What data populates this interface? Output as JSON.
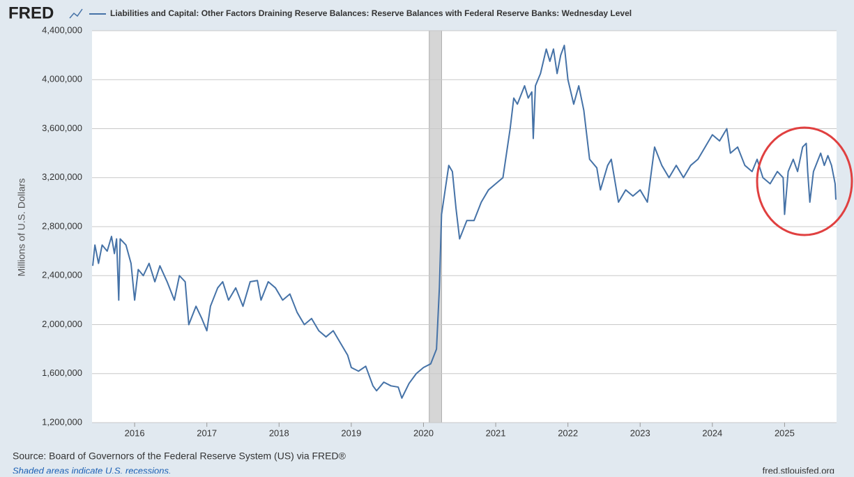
{
  "logo": "FRED",
  "source": "Source: Board of Governors of the Federal Reserve System (US) via FRED®",
  "note": "Shaded areas indicate U.S. recessions.",
  "site": "fred.stlouisfed.org",
  "chart_data": {
    "type": "line",
    "y_label": "Millions of U.S. Dollars",
    "x": [
      2015.42,
      2015.45,
      2015.5,
      2015.55,
      2015.62,
      2015.68,
      2015.72,
      2015.75,
      2015.78,
      2015.8,
      2015.88,
      2015.95,
      2016.0,
      2016.05,
      2016.12,
      2016.2,
      2016.28,
      2016.35,
      2016.45,
      2016.55,
      2016.62,
      2016.7,
      2016.75,
      2016.85,
      2016.93,
      2017.0,
      2017.05,
      2017.15,
      2017.22,
      2017.3,
      2017.4,
      2017.5,
      2017.6,
      2017.7,
      2017.75,
      2017.85,
      2017.95,
      2018.05,
      2018.15,
      2018.25,
      2018.35,
      2018.45,
      2018.55,
      2018.65,
      2018.75,
      2018.85,
      2018.95,
      2019.0,
      2019.1,
      2019.2,
      2019.3,
      2019.35,
      2019.45,
      2019.55,
      2019.65,
      2019.7,
      2019.8,
      2019.9,
      2020.0,
      2020.1,
      2020.18,
      2020.22,
      2020.25,
      2020.3,
      2020.35,
      2020.4,
      2020.45,
      2020.5,
      2020.6,
      2020.7,
      2020.8,
      2020.9,
      2021.0,
      2021.1,
      2021.15,
      2021.2,
      2021.25,
      2021.3,
      2021.4,
      2021.45,
      2021.5,
      2021.52,
      2021.55,
      2021.62,
      2021.7,
      2021.75,
      2021.8,
      2021.85,
      2021.9,
      2021.95,
      2022.0,
      2022.08,
      2022.15,
      2022.22,
      2022.3,
      2022.4,
      2022.45,
      2022.55,
      2022.6,
      2022.7,
      2022.8,
      2022.9,
      2023.0,
      2023.1,
      2023.2,
      2023.3,
      2023.4,
      2023.5,
      2023.6,
      2023.7,
      2023.8,
      2023.9,
      2024.0,
      2024.1,
      2024.2,
      2024.25,
      2024.35,
      2024.45,
      2024.55,
      2024.62,
      2024.7,
      2024.8,
      2024.9,
      2024.98,
      2025.0,
      2025.05,
      2025.12,
      2025.18,
      2025.25,
      2025.3,
      2025.32,
      2025.35,
      2025.4,
      2025.5,
      2025.55,
      2025.6,
      2025.65,
      2025.7,
      2025.71
    ],
    "series": [
      {
        "name": "Liabilities and Capital: Other Factors Draining Reserve Balances: Reserve Balances with Federal Reserve Banks: Wednesday Level",
        "color": "#4572a7",
        "values": [
          2480000,
          2650000,
          2500000,
          2650000,
          2600000,
          2720000,
          2580000,
          2700000,
          2200000,
          2700000,
          2650000,
          2500000,
          2200000,
          2450000,
          2400000,
          2500000,
          2350000,
          2480000,
          2350000,
          2200000,
          2400000,
          2350000,
          2000000,
          2150000,
          2050000,
          1950000,
          2150000,
          2300000,
          2350000,
          2200000,
          2300000,
          2150000,
          2350000,
          2360000,
          2200000,
          2350000,
          2300000,
          2200000,
          2250000,
          2100000,
          2000000,
          2050000,
          1950000,
          1900000,
          1950000,
          1850000,
          1750000,
          1650000,
          1620000,
          1660000,
          1500000,
          1460000,
          1530000,
          1500000,
          1490000,
          1400000,
          1520000,
          1600000,
          1650000,
          1680000,
          1800000,
          2300000,
          2900000,
          3100000,
          3300000,
          3250000,
          2950000,
          2700000,
          2850000,
          2850000,
          3000000,
          3100000,
          3150000,
          3200000,
          3400000,
          3600000,
          3850000,
          3800000,
          3950000,
          3850000,
          3900000,
          3520000,
          3950000,
          4050000,
          4250000,
          4150000,
          4250000,
          4050000,
          4200000,
          4280000,
          4000000,
          3800000,
          3950000,
          3750000,
          3350000,
          3280000,
          3100000,
          3300000,
          3350000,
          3000000,
          3100000,
          3050000,
          3100000,
          3000000,
          3450000,
          3300000,
          3200000,
          3300000,
          3200000,
          3300000,
          3350000,
          3450000,
          3550000,
          3500000,
          3600000,
          3400000,
          3450000,
          3300000,
          3250000,
          3350000,
          3200000,
          3150000,
          3250000,
          3200000,
          2900000,
          3250000,
          3350000,
          3250000,
          3450000,
          3480000,
          3250000,
          3000000,
          3250000,
          3400000,
          3300000,
          3380000,
          3300000,
          3150000,
          3020000
        ]
      }
    ],
    "xlim": [
      2015.41,
      2025.72
    ],
    "xticks": [
      2016,
      2017,
      2018,
      2019,
      2020,
      2021,
      2022,
      2023,
      2024,
      2025
    ],
    "ylim": [
      1200000,
      4400000
    ],
    "yticks": [
      {
        "value": 1200000,
        "label": "1,200,000"
      },
      {
        "value": 1600000,
        "label": "1,600,000"
      },
      {
        "value": 2000000,
        "label": "2,000,000"
      },
      {
        "value": 2400000,
        "label": "2,400,000"
      },
      {
        "value": 2800000,
        "label": "2,800,000"
      },
      {
        "value": 3200000,
        "label": "3,200,000"
      },
      {
        "value": 3600000,
        "label": "3,600,000"
      },
      {
        "value": 4000000,
        "label": "4,000,000"
      },
      {
        "value": 4400000,
        "label": "4,400,000"
      }
    ],
    "recessions": [
      [
        2020.08,
        2020.25
      ]
    ],
    "grid": true
  }
}
